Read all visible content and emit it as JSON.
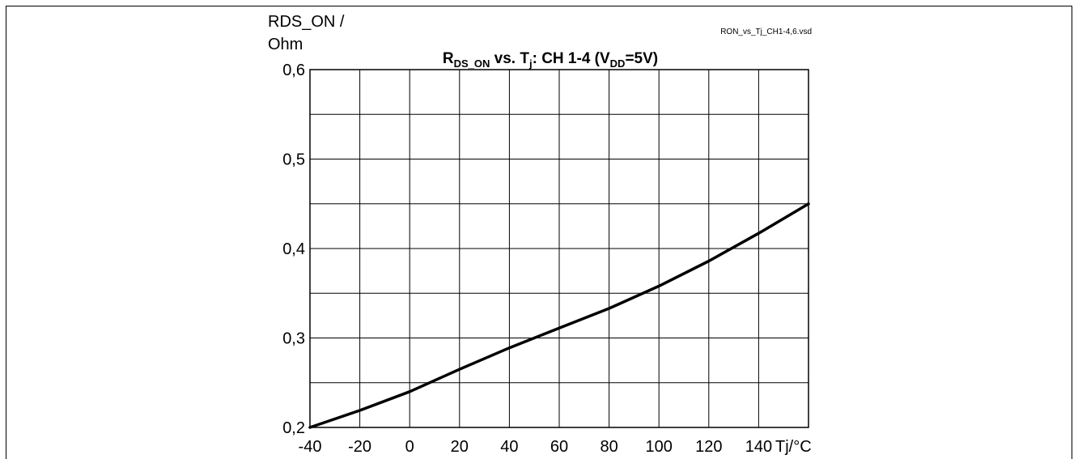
{
  "chart_data": {
    "type": "line",
    "title": {
      "parts": [
        {
          "text": "R",
          "sub": false
        },
        {
          "text": "DS_ON",
          "sub": true
        },
        {
          "text": " vs. T",
          "sub": false
        },
        {
          "text": "j",
          "sub": true
        },
        {
          "text": ": CH 1-4 (V",
          "sub": false
        },
        {
          "text": "DD",
          "sub": true
        },
        {
          "text": "=5V)",
          "sub": false
        }
      ]
    },
    "file_label": "RON_vs_Tj_CH1-4,6.vsd",
    "ylabel_line1": "RDS_ON /",
    "ylabel_line2": "Ohm",
    "xlabel": "Tj/°C",
    "xlim": [
      -40,
      160
    ],
    "ylim": [
      0.2,
      0.6
    ],
    "x_ticks": [
      -40,
      -20,
      0,
      20,
      40,
      60,
      80,
      100,
      120,
      140
    ],
    "x_tick_labels": [
      "-40",
      "-20",
      "0",
      "20",
      "40",
      "60",
      "80",
      "100",
      "120",
      "140"
    ],
    "y_ticks": [
      0.2,
      0.3,
      0.4,
      0.5,
      0.6
    ],
    "y_tick_labels": [
      "0,2",
      "0,3",
      "0,4",
      "0,5",
      "0,6"
    ],
    "x_grid_step": 20,
    "y_grid_step": 0.05,
    "grid": true,
    "series": [
      {
        "x": [
          -40,
          -20,
          0,
          20,
          40,
          60,
          80,
          100,
          120,
          140,
          160
        ],
        "y": [
          0.2,
          0.219,
          0.24,
          0.265,
          0.289,
          0.311,
          0.333,
          0.358,
          0.386,
          0.417,
          0.45
        ]
      }
    ]
  }
}
